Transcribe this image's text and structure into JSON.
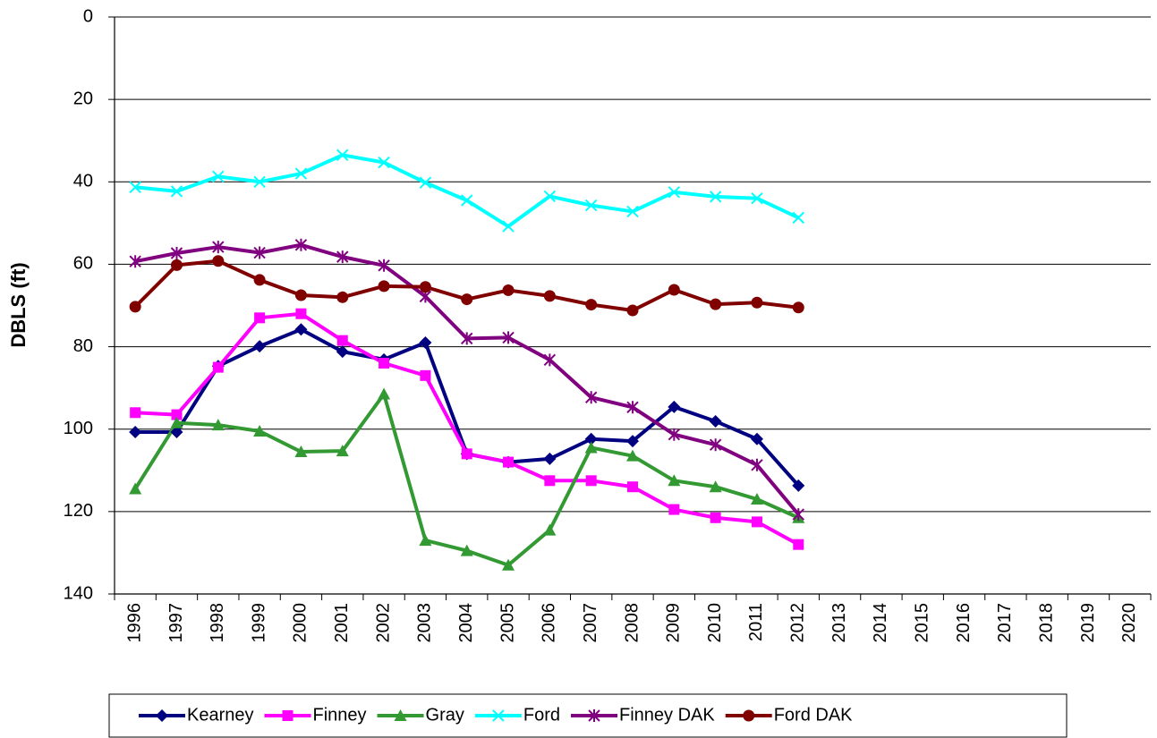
{
  "chart_data": {
    "type": "line",
    "y_label": "DBLS (ft)",
    "categories": [
      "1996",
      "1997",
      "1998",
      "1999",
      "2000",
      "2001",
      "2002",
      "2003",
      "2004",
      "2005",
      "2006",
      "2007",
      "2008",
      "2009",
      "2010",
      "2011",
      "2012",
      "2013",
      "2014",
      "2015",
      "2016",
      "2017",
      "2018",
      "2019",
      "2020"
    ],
    "series": [
      {
        "name": "Kearney",
        "color": "#000080",
        "marker": "diamond",
        "values": [
          100.7,
          100.7,
          84.7,
          79.9,
          75.8,
          81.2,
          83.1,
          79.0,
          106.0,
          108.0,
          107.2,
          102.4,
          102.9,
          94.6,
          98.1,
          102.4,
          113.7,
          null,
          null,
          null,
          null,
          null,
          null,
          null,
          null
        ]
      },
      {
        "name": "Finney",
        "color": "#ff00ff",
        "marker": "square",
        "values": [
          96.0,
          96.5,
          85.0,
          73.0,
          72.0,
          78.5,
          84.0,
          87.0,
          106.0,
          108.0,
          112.5,
          112.5,
          114.0,
          119.5,
          121.5,
          122.5,
          128.0,
          null,
          null,
          null,
          null,
          null,
          null,
          null,
          null
        ]
      },
      {
        "name": "Gray",
        "color": "#339933",
        "marker": "triangle",
        "values": [
          114.5,
          98.5,
          99.0,
          100.5,
          105.5,
          105.3,
          91.5,
          127.0,
          129.5,
          133.0,
          124.5,
          104.5,
          106.5,
          112.5,
          114.0,
          117.0,
          121.5,
          null,
          null,
          null,
          null,
          null,
          null,
          null,
          null
        ]
      },
      {
        "name": "Ford",
        "color": "#00ffff",
        "marker": "x",
        "values": [
          41.3,
          42.3,
          38.7,
          40.0,
          38.0,
          33.5,
          35.3,
          40.2,
          44.5,
          50.8,
          43.5,
          45.7,
          47.2,
          42.5,
          43.6,
          44.0,
          48.7,
          null,
          null,
          null,
          null,
          null,
          null,
          null,
          null
        ]
      },
      {
        "name": "Finney DAK",
        "color": "#800080",
        "marker": "star",
        "values": [
          59.3,
          57.3,
          55.8,
          57.2,
          55.3,
          58.2,
          60.3,
          67.8,
          78.0,
          77.8,
          83.2,
          92.3,
          94.7,
          101.3,
          103.8,
          108.7,
          120.7,
          null,
          null,
          null,
          null,
          null,
          null,
          null,
          null
        ]
      },
      {
        "name": "Ford DAK",
        "color": "#800000",
        "marker": "circle",
        "values": [
          70.3,
          60.2,
          59.2,
          63.8,
          67.5,
          68.0,
          65.3,
          65.5,
          68.5,
          66.3,
          67.7,
          69.8,
          71.2,
          66.2,
          69.7,
          69.3,
          70.5,
          null,
          null,
          null,
          null,
          null,
          null,
          null,
          null
        ]
      }
    ],
    "ylim": [
      0,
      140
    ],
    "yticks": [
      0,
      20,
      40,
      60,
      80,
      100,
      120,
      140
    ],
    "y_inverted": true,
    "grid": true,
    "legend": "bottom"
  }
}
